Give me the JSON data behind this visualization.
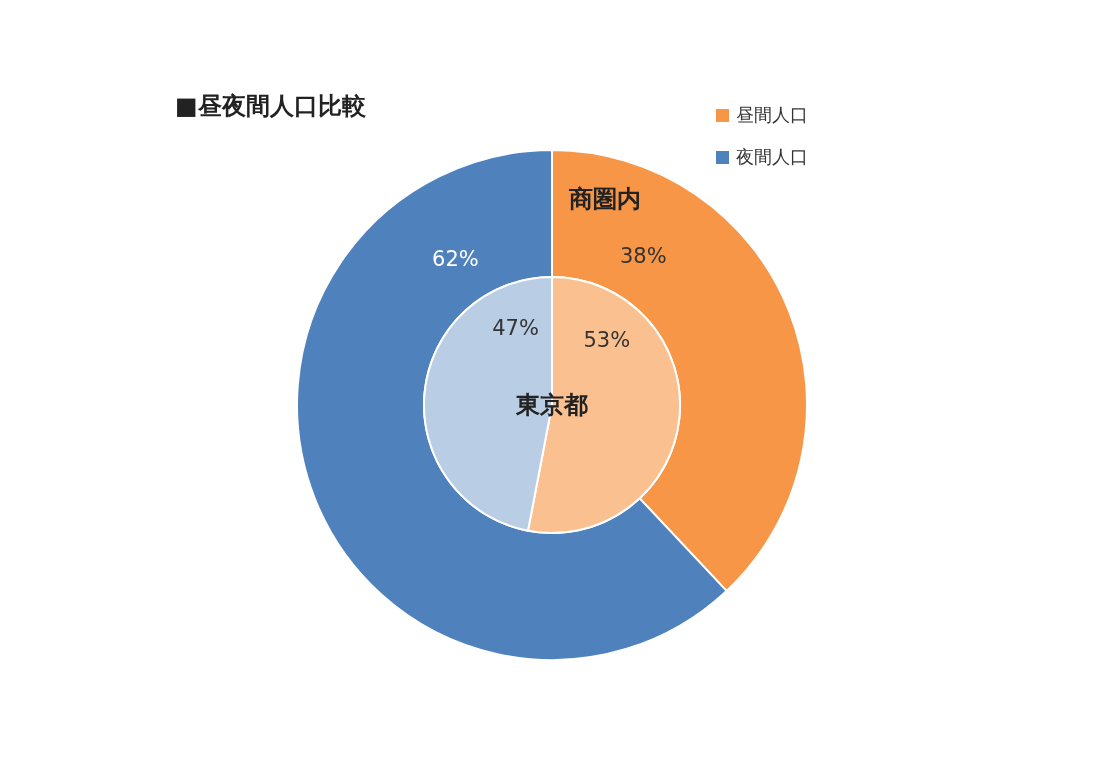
{
  "chart_data": {
    "type": "donut",
    "title": "■昼夜間人口比較",
    "categories": [
      "昼間人口",
      "夜間人口"
    ],
    "series": [
      {
        "name": "商圏内",
        "values": [
          38,
          62
        ],
        "value_labels": [
          "38%",
          "62%"
        ],
        "colors": [
          "#f79646",
          "#4f81bd"
        ]
      },
      {
        "name": "東京都",
        "values": [
          53,
          47
        ],
        "value_labels": [
          "53%",
          "47%"
        ],
        "colors": [
          "#fac090",
          "#b9cde5"
        ]
      }
    ],
    "legend": "top right"
  }
}
